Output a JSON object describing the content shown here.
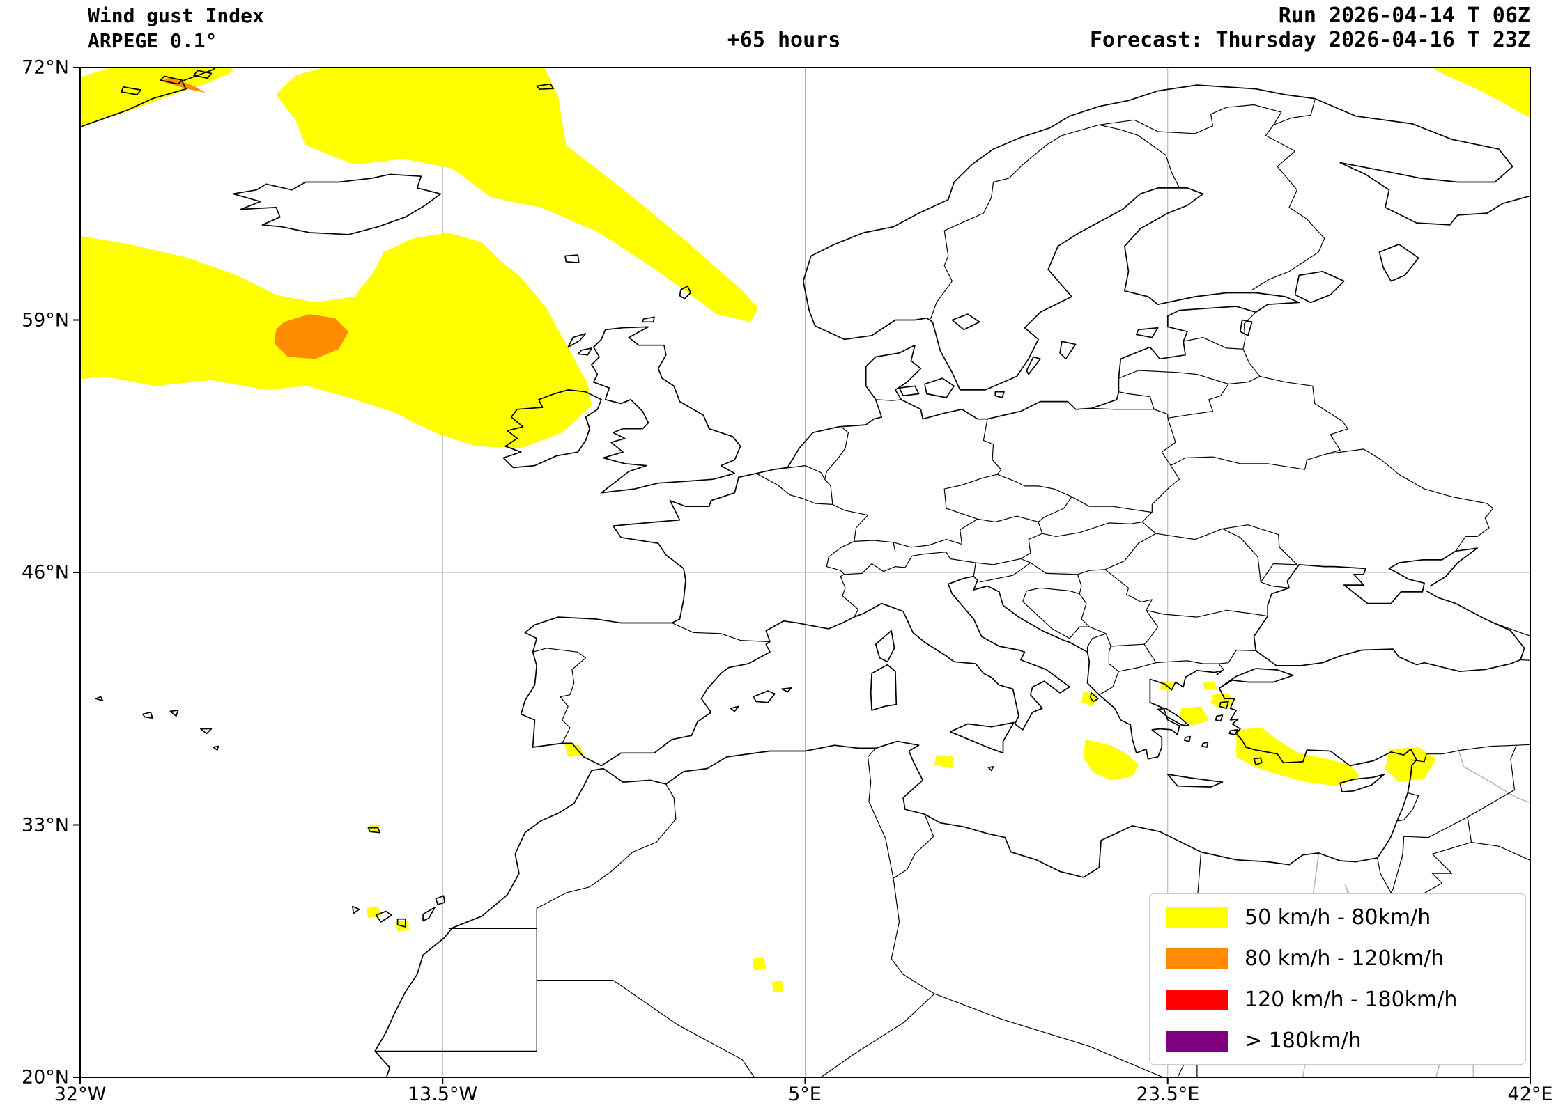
{
  "header": {
    "title": "Wind gust Index",
    "model": "ARPEGE 0.1°",
    "lead_time": "+65 hours",
    "run": "Run 2026-04-14 T 06Z",
    "forecast": "Forecast: Thursday 2026-04-16 T 23Z"
  },
  "axes": {
    "lat_labels": [
      "72°N",
      "59°N",
      "46°N",
      "33°N",
      "20°N"
    ],
    "lon_labels": [
      "32°W",
      "13.5°W",
      "5°E",
      "23.5°E",
      "42°E"
    ]
  },
  "legend": {
    "items": [
      {
        "label": "50 km/h - 80km/h",
        "color": "#ffff00"
      },
      {
        "label": "80 km/h - 120km/h",
        "color": "#ff8c00"
      },
      {
        "label": "120 km/h - 180km/h",
        "color": "#ff0000"
      },
      {
        "label": "> 180km/h",
        "color": "#800080"
      }
    ]
  },
  "map": {
    "projection": "equirectangular",
    "lon_range": [
      -32,
      42
    ],
    "lat_range": [
      20,
      72
    ],
    "grid_lons": [
      -32,
      -13.5,
      5,
      23.5,
      42
    ],
    "grid_lats": [
      20,
      33,
      46,
      59,
      72
    ],
    "gust_areas": {
      "level1": [
        [
          [
            -32.4,
            71.4
          ],
          [
            -30.0,
            72.1
          ],
          [
            -27.0,
            72.45
          ],
          [
            -24.6,
            72.45
          ],
          [
            -24.2,
            71.8
          ],
          [
            -25.5,
            71.2
          ],
          [
            -27.0,
            70.7
          ],
          [
            -28.6,
            70.1
          ],
          [
            -30.0,
            69.6
          ],
          [
            -31.3,
            69.2
          ],
          [
            -32.4,
            68.9
          ]
        ],
        [
          [
            -32.0,
            70.65
          ],
          [
            -31.3,
            70.75
          ],
          [
            -31.1,
            70.4
          ],
          [
            -31.9,
            70.3
          ]
        ],
        [
          [
            -22.0,
            70.6
          ],
          [
            -21.0,
            71.6
          ],
          [
            -18.0,
            72.45
          ],
          [
            -8.5,
            72.45
          ],
          [
            -7.6,
            70.5
          ],
          [
            -7.2,
            68.0
          ],
          [
            -4.0,
            65.5
          ],
          [
            -1.0,
            63.0
          ],
          [
            1.8,
            60.5
          ],
          [
            2.6,
            59.6
          ],
          [
            2.2,
            58.9
          ],
          [
            0.5,
            59.3
          ],
          [
            -2.5,
            61.5
          ],
          [
            -5.5,
            63.5
          ],
          [
            -8.5,
            64.8
          ],
          [
            -11.0,
            65.3
          ],
          [
            -13.0,
            66.8
          ],
          [
            -15.5,
            67.3
          ],
          [
            -18.0,
            67.0
          ],
          [
            -20.5,
            68.0
          ],
          [
            -21.0,
            69.3
          ]
        ],
        [
          [
            -32.4,
            63.4
          ],
          [
            -29.5,
            62.9
          ],
          [
            -26.5,
            62.2
          ],
          [
            -24.0,
            61.3
          ],
          [
            -22.0,
            60.3
          ],
          [
            -20.0,
            59.9
          ],
          [
            -18.0,
            60.2
          ],
          [
            -17.0,
            61.5
          ],
          [
            -16.5,
            62.5
          ],
          [
            -15.0,
            63.2
          ],
          [
            -13.2,
            63.5
          ],
          [
            -11.5,
            63.0
          ],
          [
            -10.5,
            62.0
          ],
          [
            -9.5,
            61.2
          ],
          [
            -8.2,
            59.6
          ],
          [
            -7.0,
            57.4
          ],
          [
            -6.1,
            55.7
          ],
          [
            -5.9,
            54.6
          ],
          [
            -7.4,
            53.2
          ],
          [
            -9.5,
            52.4
          ],
          [
            -11.8,
            52.5
          ],
          [
            -13.9,
            53.2
          ],
          [
            -16.1,
            54.3
          ],
          [
            -18.3,
            55.0
          ],
          [
            -20.4,
            55.6
          ],
          [
            -22.5,
            55.4
          ],
          [
            -25.3,
            55.9
          ],
          [
            -28.2,
            55.6
          ],
          [
            -30.8,
            56.1
          ],
          [
            -32.4,
            55.9
          ]
        ],
        [
          [
            36.3,
            72.45
          ],
          [
            42.4,
            72.45
          ],
          [
            42.4,
            69.2
          ],
          [
            41.3,
            69.8
          ],
          [
            39.5,
            70.8
          ],
          [
            37.5,
            71.7
          ]
        ],
        [
          [
            19.3,
            37.4
          ],
          [
            20.6,
            37.1
          ],
          [
            21.5,
            36.6
          ],
          [
            22.0,
            36.1
          ],
          [
            21.7,
            35.5
          ],
          [
            20.6,
            35.3
          ],
          [
            19.7,
            35.7
          ],
          [
            19.2,
            36.5
          ]
        ],
        [
          [
            24.2,
            39.0
          ],
          [
            25.2,
            39.1
          ],
          [
            25.6,
            38.4
          ],
          [
            24.8,
            38.1
          ],
          [
            24.1,
            38.5
          ]
        ],
        [
          [
            25.8,
            39.7
          ],
          [
            26.6,
            39.8
          ],
          [
            26.9,
            39.2
          ],
          [
            26.1,
            39.0
          ],
          [
            25.7,
            39.3
          ]
        ],
        [
          [
            23.2,
            40.4
          ],
          [
            23.9,
            40.3
          ],
          [
            23.6,
            39.9
          ],
          [
            23.1,
            40.0
          ]
        ],
        [
          [
            25.3,
            40.3
          ],
          [
            25.9,
            40.4
          ],
          [
            26.0,
            40.0
          ],
          [
            25.4,
            39.95
          ]
        ],
        [
          [
            27.0,
            37.9
          ],
          [
            28.3,
            38.0
          ],
          [
            29.2,
            37.3
          ],
          [
            30.2,
            36.7
          ],
          [
            31.6,
            36.4
          ],
          [
            32.8,
            36.1
          ],
          [
            33.3,
            35.5
          ],
          [
            32.2,
            35.0
          ],
          [
            30.6,
            35.2
          ],
          [
            29.1,
            35.6
          ],
          [
            27.9,
            36.0
          ],
          [
            27.0,
            36.5
          ]
        ],
        [
          [
            34.8,
            36.9
          ],
          [
            36.3,
            37.0
          ],
          [
            37.2,
            36.4
          ],
          [
            36.6,
            35.4
          ],
          [
            35.3,
            35.2
          ],
          [
            34.6,
            35.9
          ]
        ],
        [
          [
            -7.3,
            37.2
          ],
          [
            -6.5,
            37.1
          ],
          [
            -6.3,
            36.6
          ],
          [
            -7.1,
            36.5
          ]
        ],
        [
          [
            11.7,
            36.6
          ],
          [
            12.6,
            36.5
          ],
          [
            12.5,
            35.9
          ],
          [
            11.6,
            36.1
          ]
        ],
        [
          [
            19.2,
            39.9
          ],
          [
            19.9,
            39.7
          ],
          [
            19.7,
            39.1
          ],
          [
            19.1,
            39.3
          ]
        ],
        [
          [
            -17.4,
            28.7
          ],
          [
            -16.8,
            28.8
          ],
          [
            -16.6,
            28.3
          ],
          [
            -17.3,
            28.2
          ]
        ],
        [
          [
            -15.9,
            28.0
          ],
          [
            -15.3,
            28.1
          ],
          [
            -15.2,
            27.6
          ],
          [
            -15.8,
            27.5
          ]
        ],
        [
          [
            2.3,
            26.1
          ],
          [
            2.9,
            26.2
          ],
          [
            3.0,
            25.6
          ],
          [
            2.4,
            25.5
          ]
        ],
        [
          [
            3.3,
            24.9
          ],
          [
            3.8,
            25.0
          ],
          [
            3.9,
            24.4
          ],
          [
            3.4,
            24.4
          ]
        ],
        [
          [
            -17.2,
            33.0
          ],
          [
            -16.7,
            33.0
          ],
          [
            -16.8,
            32.6
          ],
          [
            -17.3,
            32.7
          ]
        ]
      ],
      "level2": [
        [
          [
            -21.6,
            58.9
          ],
          [
            -20.3,
            59.3
          ],
          [
            -19.0,
            59.1
          ],
          [
            -18.3,
            58.4
          ],
          [
            -18.8,
            57.5
          ],
          [
            -20.0,
            57.0
          ],
          [
            -21.4,
            57.1
          ],
          [
            -22.1,
            57.8
          ],
          [
            -22.0,
            58.5
          ]
        ],
        [
          [
            -27.9,
            71.3
          ],
          [
            -26.5,
            70.9
          ],
          [
            -25.6,
            70.7
          ],
          [
            -26.2,
            71.05
          ],
          [
            -27.4,
            71.5
          ]
        ]
      ]
    }
  }
}
